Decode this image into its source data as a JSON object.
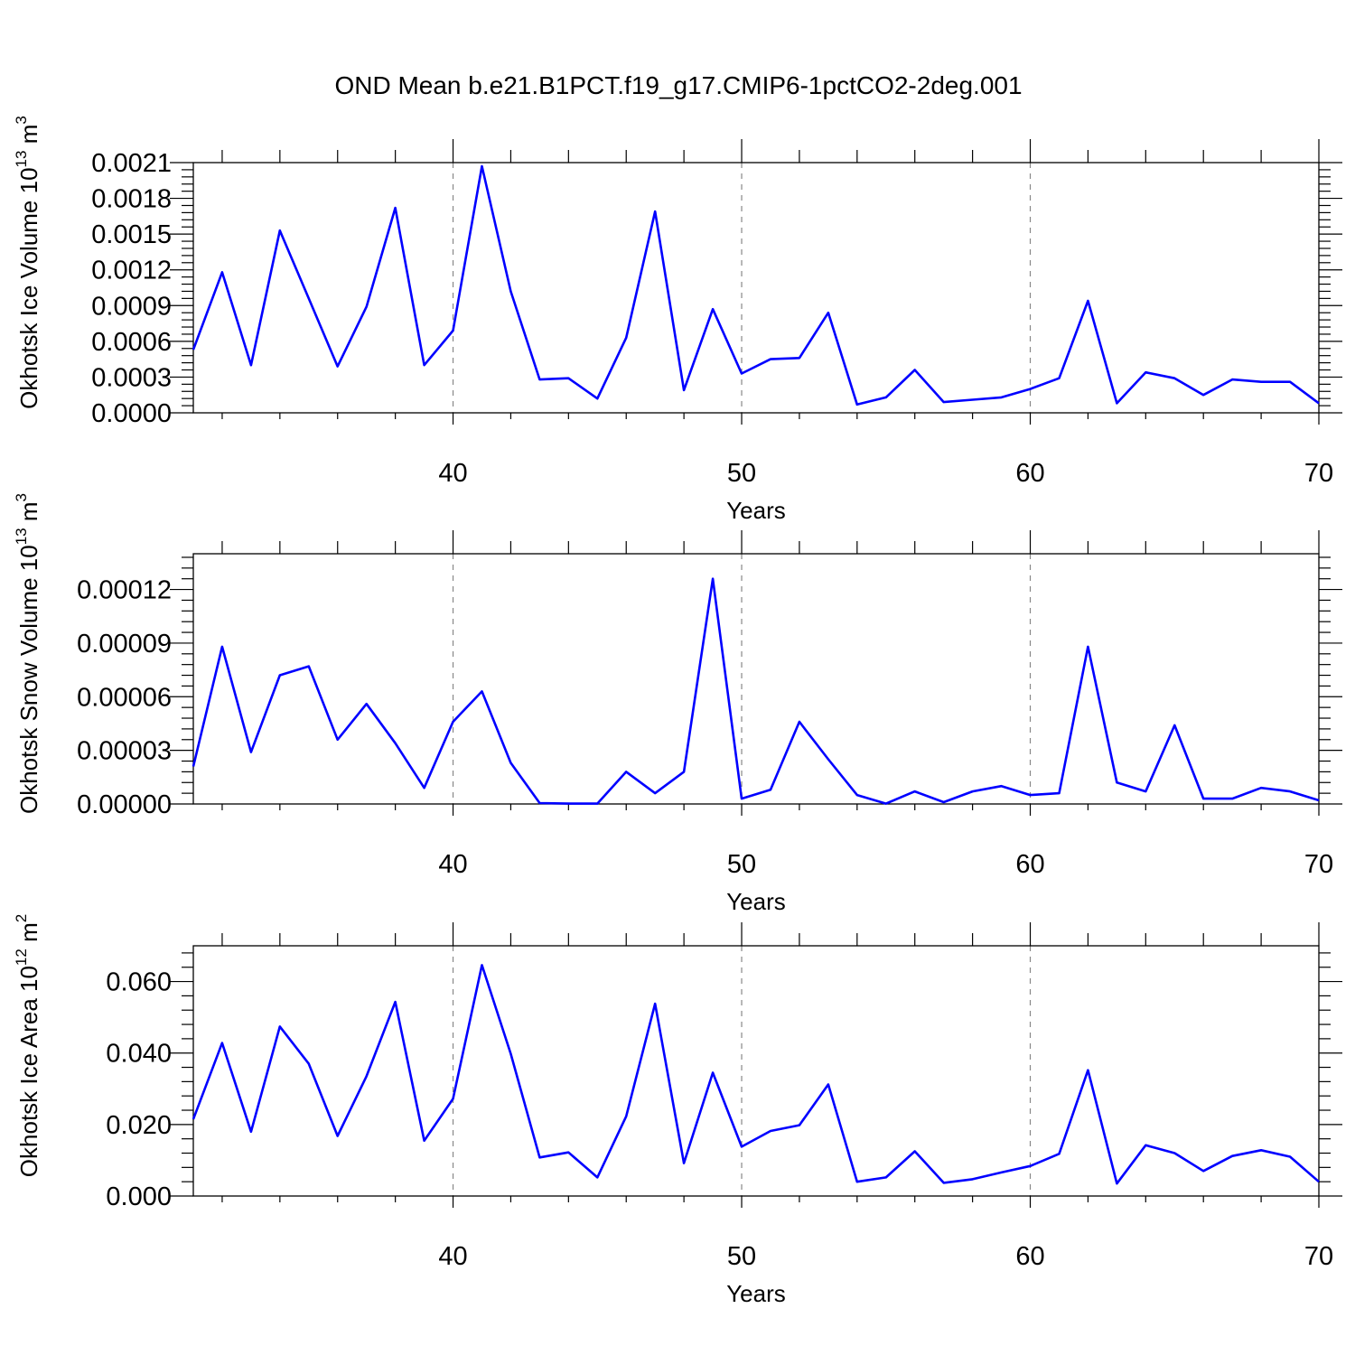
{
  "title": "OND Mean b.e21.B1PCT.f19_g17.CMIP6-1pctCO2-2deg.001",
  "colors": {
    "series": "#0000ff",
    "grid": "#888888",
    "axes": "#000000"
  },
  "chart_data": [
    {
      "type": "line",
      "xlabel": "Years",
      "ylabel_main": "Okhotsk Ice Volume 10",
      "ylabel_exp": "13",
      "ylabel_unit": " m",
      "ylabel_unit_exp": "3",
      "xlim": [
        31,
        70
      ],
      "ylim": [
        0,
        0.0021
      ],
      "x_ticks": [
        "40",
        "50",
        "60",
        "70"
      ],
      "y_ticks": [
        "0.0000",
        "0.0003",
        "0.0006",
        "0.0009",
        "0.0012",
        "0.0015",
        "0.0018",
        "0.0021"
      ],
      "grid_x": [
        40,
        50,
        60
      ],
      "x": [
        31,
        32,
        33,
        34,
        35,
        36,
        37,
        38,
        39,
        40,
        41,
        42,
        43,
        44,
        45,
        46,
        47,
        48,
        49,
        50,
        51,
        52,
        53,
        54,
        55,
        56,
        57,
        58,
        59,
        60,
        61,
        62,
        63,
        64,
        65,
        66,
        67,
        68,
        69,
        70
      ],
      "values": [
        0.00053,
        0.00118,
        0.0004,
        0.00153,
        0.00096,
        0.00039,
        0.00089,
        0.00172,
        0.0004,
        0.00069,
        0.00207,
        0.00102,
        0.00028,
        0.00029,
        0.00012,
        0.00063,
        0.00169,
        0.00019,
        0.00087,
        0.00033,
        0.00045,
        0.00046,
        0.00084,
        7e-05,
        0.00013,
        0.00036,
        9e-05,
        0.00011,
        0.00013,
        0.0002,
        0.00029,
        0.00094,
        8e-05,
        0.00034,
        0.00029,
        0.00015,
        0.00028,
        0.00026,
        0.00026,
        8e-05
      ]
    },
    {
      "type": "line",
      "xlabel": "Years",
      "ylabel_main": "Okhotsk Snow Volume 10",
      "ylabel_exp": "13",
      "ylabel_unit": " m",
      "ylabel_unit_exp": "3",
      "xlim": [
        31,
        70
      ],
      "ylim": [
        0,
        0.00014
      ],
      "x_ticks": [
        "40",
        "50",
        "60",
        "70"
      ],
      "y_ticks": [
        "0.00000",
        "0.00003",
        "0.00006",
        "0.00009",
        "0.00012"
      ],
      "grid_x": [
        40,
        50,
        60
      ],
      "x": [
        31,
        32,
        33,
        34,
        35,
        36,
        37,
        38,
        39,
        40,
        41,
        42,
        43,
        44,
        45,
        46,
        47,
        48,
        49,
        50,
        51,
        52,
        53,
        54,
        55,
        56,
        57,
        58,
        59,
        60,
        61,
        62,
        63,
        64,
        65,
        66,
        67,
        68,
        69,
        70
      ],
      "values": [
        2.1e-05,
        8.8e-05,
        2.9e-05,
        7.2e-05,
        7.7e-05,
        3.6e-05,
        5.6e-05,
        3.4e-05,
        9e-06,
        4.6e-05,
        6.3e-05,
        2.3e-05,
        5e-07,
        2e-07,
        2e-07,
        1.8e-05,
        6e-06,
        1.8e-05,
        0.000126,
        3e-06,
        8e-06,
        4.6e-05,
        2.5e-05,
        5e-06,
        2e-07,
        7e-06,
        1e-06,
        7e-06,
        1e-05,
        5e-06,
        6e-06,
        8.8e-05,
        1.2e-05,
        7e-06,
        4.4e-05,
        3e-06,
        3e-06,
        9e-06,
        7e-06,
        2e-06
      ]
    },
    {
      "type": "line",
      "xlabel": "Years",
      "ylabel_main": "Okhotsk Ice Area 10",
      "ylabel_exp": "12",
      "ylabel_unit": " m",
      "ylabel_unit_exp": "2",
      "xlim": [
        31,
        70
      ],
      "ylim": [
        0,
        0.07
      ],
      "x_ticks": [
        "40",
        "50",
        "60",
        "70"
      ],
      "y_ticks": [
        "0.000",
        "0.020",
        "0.040",
        "0.060"
      ],
      "grid_x": [
        40,
        50,
        60
      ],
      "x": [
        31,
        32,
        33,
        34,
        35,
        36,
        37,
        38,
        39,
        40,
        41,
        42,
        43,
        44,
        45,
        46,
        47,
        48,
        49,
        50,
        51,
        52,
        53,
        54,
        55,
        56,
        57,
        58,
        59,
        60,
        61,
        62,
        63,
        64,
        65,
        66,
        67,
        68,
        69,
        70
      ],
      "values": [
        0.0215,
        0.0428,
        0.018,
        0.0474,
        0.037,
        0.0168,
        0.0335,
        0.0543,
        0.0155,
        0.0272,
        0.0646,
        0.0398,
        0.0108,
        0.0122,
        0.0052,
        0.0223,
        0.0538,
        0.0092,
        0.0345,
        0.0138,
        0.0182,
        0.0198,
        0.0312,
        0.004,
        0.0052,
        0.0125,
        0.0037,
        0.0047,
        0.0066,
        0.0084,
        0.0118,
        0.0352,
        0.0035,
        0.0142,
        0.012,
        0.007,
        0.0112,
        0.0128,
        0.011,
        0.004
      ]
    }
  ]
}
